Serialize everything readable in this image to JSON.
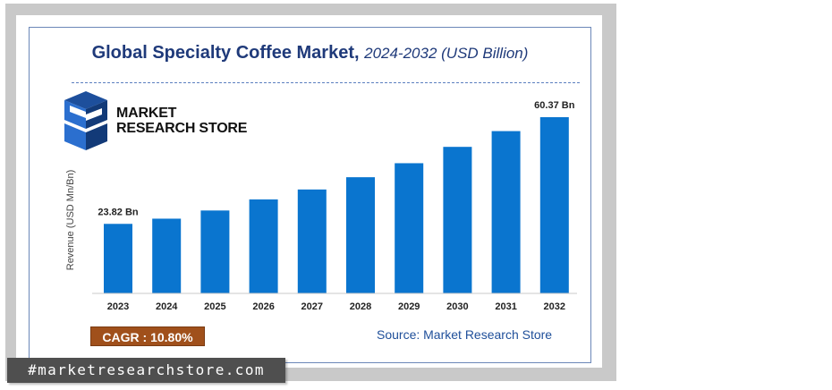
{
  "title": {
    "main": "Global Specialty Coffee Market,",
    "sub": "2024-2032 (USD Billion)"
  },
  "logo": {
    "line1": "MARKET",
    "line2": "RESEARCH STORE"
  },
  "cagr": "CAGR : 10.80%",
  "source": "Source: Market Research Store",
  "hashtag": "#marketresearchstore.com",
  "colors": {
    "bar": "#0a75cf",
    "title": "#1f3a7a",
    "cagr_bg": "#a0501b"
  },
  "chart_data": {
    "type": "bar",
    "categories": [
      "2023",
      "2024",
      "2025",
      "2026",
      "2027",
      "2028",
      "2029",
      "2030",
      "2031",
      "2032"
    ],
    "values": [
      23.82,
      25.6,
      28.4,
      32.2,
      35.6,
      39.8,
      44.6,
      50.2,
      55.6,
      60.37
    ],
    "data_labels": [
      {
        "index": 0,
        "text": "23.82 Bn"
      },
      {
        "index": 9,
        "text": "60.37 Bn"
      }
    ],
    "ylabel": "Revenue (USD Mn/Bn)",
    "xlabel": "",
    "ylim": [
      0,
      65
    ],
    "grid": false,
    "legend": "none"
  }
}
